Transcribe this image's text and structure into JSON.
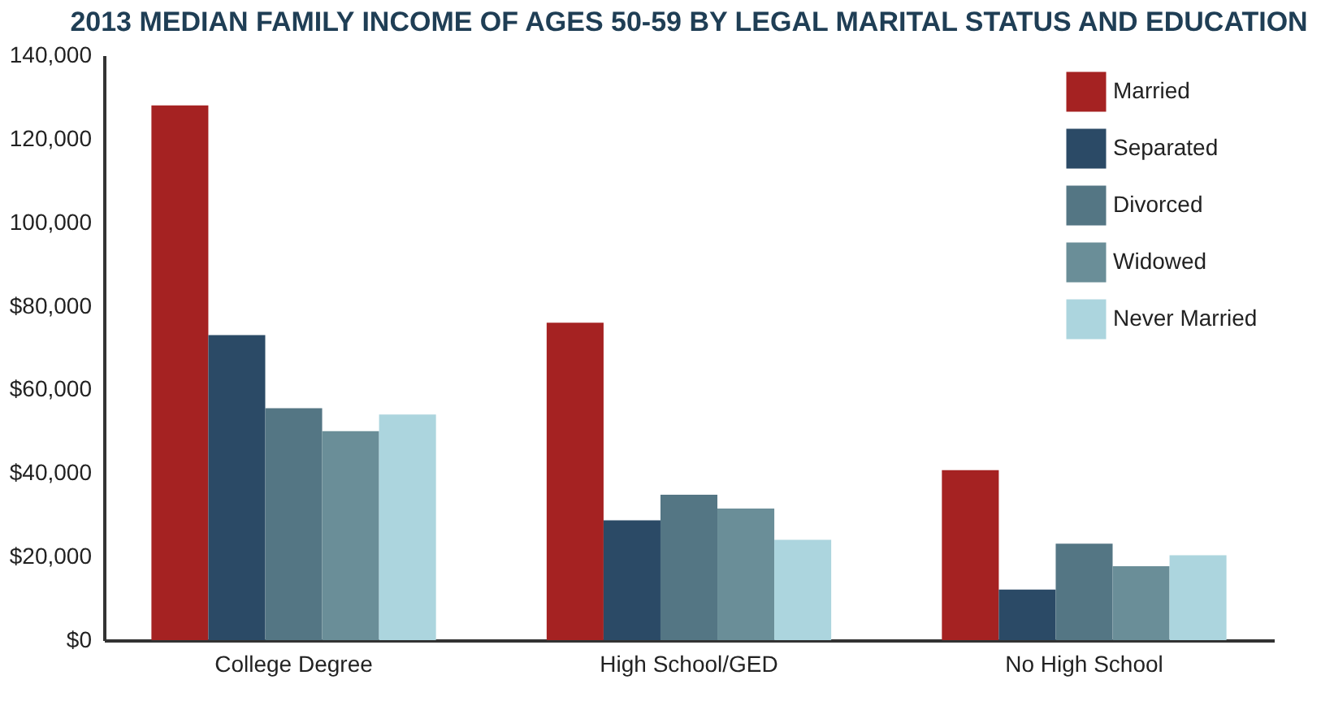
{
  "chart_data": {
    "type": "bar",
    "title": "2013 MEDIAN FAMILY INCOME OF AGES 50-59 BY LEGAL MARITAL STATUS AND EDUCATION",
    "categories": [
      "College Degree",
      "High School/GED",
      "No High School"
    ],
    "series": [
      {
        "name": "Married",
        "color": "#a52222",
        "values": [
          128000,
          76000,
          40700
        ]
      },
      {
        "name": "Separated",
        "color": "#2b4a66",
        "values": [
          73000,
          28700,
          12100
        ]
      },
      {
        "name": "Divorced",
        "color": "#547684",
        "values": [
          55500,
          34800,
          23100
        ]
      },
      {
        "name": "Widowed",
        "color": "#6a8e98",
        "values": [
          50000,
          31500,
          17700
        ]
      },
      {
        "name": "Never Married",
        "color": "#acd5de",
        "values": [
          54000,
          24000,
          20300
        ]
      }
    ],
    "ylim": [
      0,
      140000
    ],
    "yticks": [
      {
        "value": 0,
        "label": "$0"
      },
      {
        "value": 20000,
        "label": "$20,000"
      },
      {
        "value": 40000,
        "label": "$40,000"
      },
      {
        "value": 60000,
        "label": "$60,000"
      },
      {
        "value": 80000,
        "label": "$80,000"
      },
      {
        "value": 100000,
        "label": "100,000"
      },
      {
        "value": 120000,
        "label": "120,000"
      },
      {
        "value": 140000,
        "label": "140,000"
      }
    ],
    "grid": false,
    "legend": "top right"
  }
}
